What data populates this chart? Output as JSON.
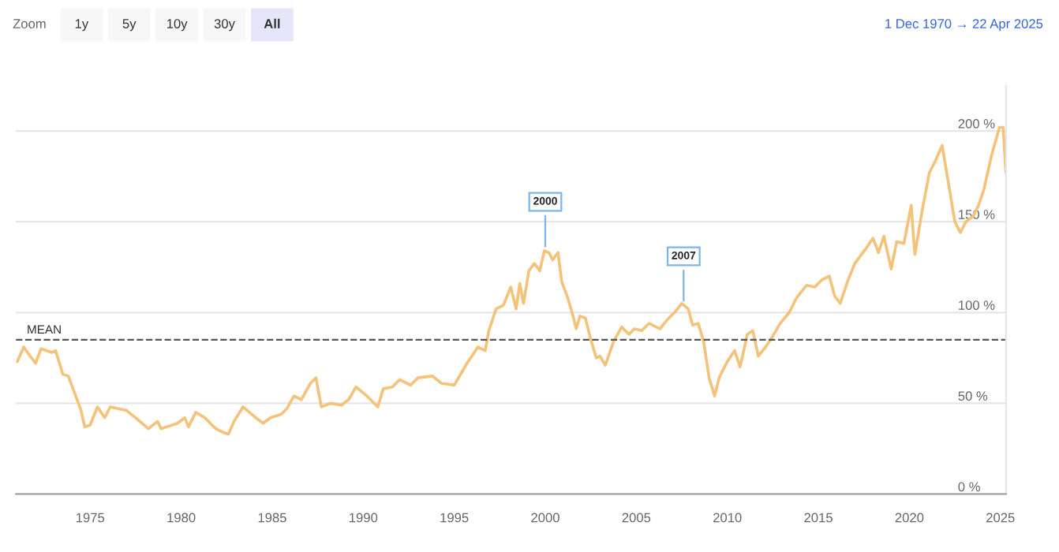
{
  "chart_data": {
    "type": "line",
    "x": [
      1971.0,
      1971.35,
      1971.7,
      1972.0,
      1972.3,
      1972.9,
      1973.1,
      1973.5,
      1973.8,
      1974.1,
      1974.5,
      1974.7,
      1975.0,
      1975.4,
      1975.8,
      1976.1,
      1977.0,
      1977.5,
      1978.2,
      1978.7,
      1978.9,
      1979.8,
      1980.2,
      1980.4,
      1980.8,
      1981.3,
      1981.6,
      1981.9,
      1982.3,
      1982.6,
      1982.9,
      1983.4,
      1984.1,
      1984.5,
      1984.9,
      1985.5,
      1985.8,
      1986.2,
      1986.6,
      1987.1,
      1987.4,
      1987.7,
      1988.2,
      1988.8,
      1989.2,
      1989.6,
      1990.2,
      1990.8,
      1991.1,
      1991.6,
      1992.0,
      1992.6,
      1993.0,
      1993.8,
      1994.3,
      1995.0,
      1995.7,
      1996.3,
      1996.7,
      1996.9,
      1997.3,
      1997.7,
      1998.1,
      1998.4,
      1998.6,
      1998.8,
      1999.1,
      1999.4,
      1999.7,
      1999.95,
      2000.2,
      2000.4,
      2000.7,
      2000.9,
      2001.2,
      2001.5,
      2001.7,
      2001.9,
      2002.2,
      2002.5,
      2002.8,
      2003.0,
      2003.3,
      2003.75,
      2004.2,
      2004.6,
      2004.9,
      2005.3,
      2005.7,
      2006.3,
      2006.7,
      2007.1,
      2007.5,
      2007.85,
      2008.1,
      2008.4,
      2008.7,
      2009.0,
      2009.3,
      2009.55,
      2010.0,
      2010.4,
      2010.7,
      2011.1,
      2011.4,
      2011.7,
      2012.1,
      2012.5,
      2012.9,
      2013.4,
      2013.8,
      2014.35,
      2014.8,
      2015.2,
      2015.6,
      2015.9,
      2016.2,
      2016.6,
      2017.0,
      2017.6,
      2018.0,
      2018.3,
      2018.6,
      2019.0,
      2019.3,
      2019.7,
      2020.1,
      2020.3,
      2020.7,
      2021.1,
      2021.4,
      2021.8,
      2022.1,
      2022.5,
      2022.8,
      2023.1,
      2023.5,
      2023.8,
      2024.1,
      2024.5,
      2024.95,
      2025.15,
      2025.3
    ],
    "series": [
      {
        "color": "#f5c27a",
        "values": [
          73,
          81,
          76,
          72,
          80,
          78,
          79,
          66,
          65,
          57,
          46,
          37,
          38,
          48,
          42,
          48,
          46,
          42,
          36,
          40,
          36,
          39,
          42,
          37,
          45,
          42,
          39,
          36,
          34,
          33,
          40,
          48,
          42,
          39,
          42,
          44,
          47,
          54,
          52,
          61,
          64,
          48,
          50,
          49,
          52,
          59,
          54,
          48,
          58,
          59,
          63,
          60,
          64,
          65,
          61,
          60,
          72,
          81,
          79,
          90,
          102,
          104,
          114,
          102,
          116,
          105,
          123,
          127,
          123,
          134,
          133,
          129,
          133,
          117,
          109,
          99,
          91,
          98,
          97,
          85,
          75,
          76,
          71,
          84,
          92,
          88,
          91,
          90,
          94,
          91,
          96,
          100,
          105,
          102,
          93,
          94,
          84,
          64,
          54,
          64,
          73,
          79,
          70,
          88,
          90,
          76,
          81,
          87,
          94,
          100,
          108,
          115,
          114,
          118,
          120,
          109,
          105,
          117,
          127,
          135,
          141,
          133,
          142,
          124,
          139,
          138,
          159,
          132,
          156,
          177,
          183,
          192,
          174,
          150,
          144,
          150,
          153,
          159,
          168,
          186,
          202,
          202,
          177
        ]
      }
    ],
    "xlim": [
      1970.92,
      2025.31
    ],
    "xticks": [
      1975,
      1980,
      1985,
      1990,
      1995,
      2000,
      2005,
      2010,
      2015,
      2020,
      2025
    ],
    "ylim": [
      0,
      225
    ],
    "yticks": [
      {
        "value": 0,
        "label": "0 %"
      },
      {
        "value": 50,
        "label": "50 %"
      },
      {
        "value": 100,
        "label": "100 %"
      },
      {
        "value": 150,
        "label": "150 %"
      },
      {
        "value": 200,
        "label": "200 %"
      }
    ],
    "grid": "y",
    "legend": false,
    "marker": "none",
    "line_style": "solid",
    "ref_lines": [
      {
        "axis": "y",
        "value": 85,
        "label": "MEAN",
        "color": "#555555",
        "line_style": "dashed"
      }
    ],
    "annotations": [
      {
        "text": "2000",
        "x": 2000.0,
        "y": 134
      },
      {
        "text": "2007",
        "x": 2007.6,
        "y": 104
      },
      "Zoom",
      "1y",
      "5y",
      "10y",
      "30y",
      "All",
      "1 Dec 1970 → 22 Apr 2025"
    ]
  }
}
